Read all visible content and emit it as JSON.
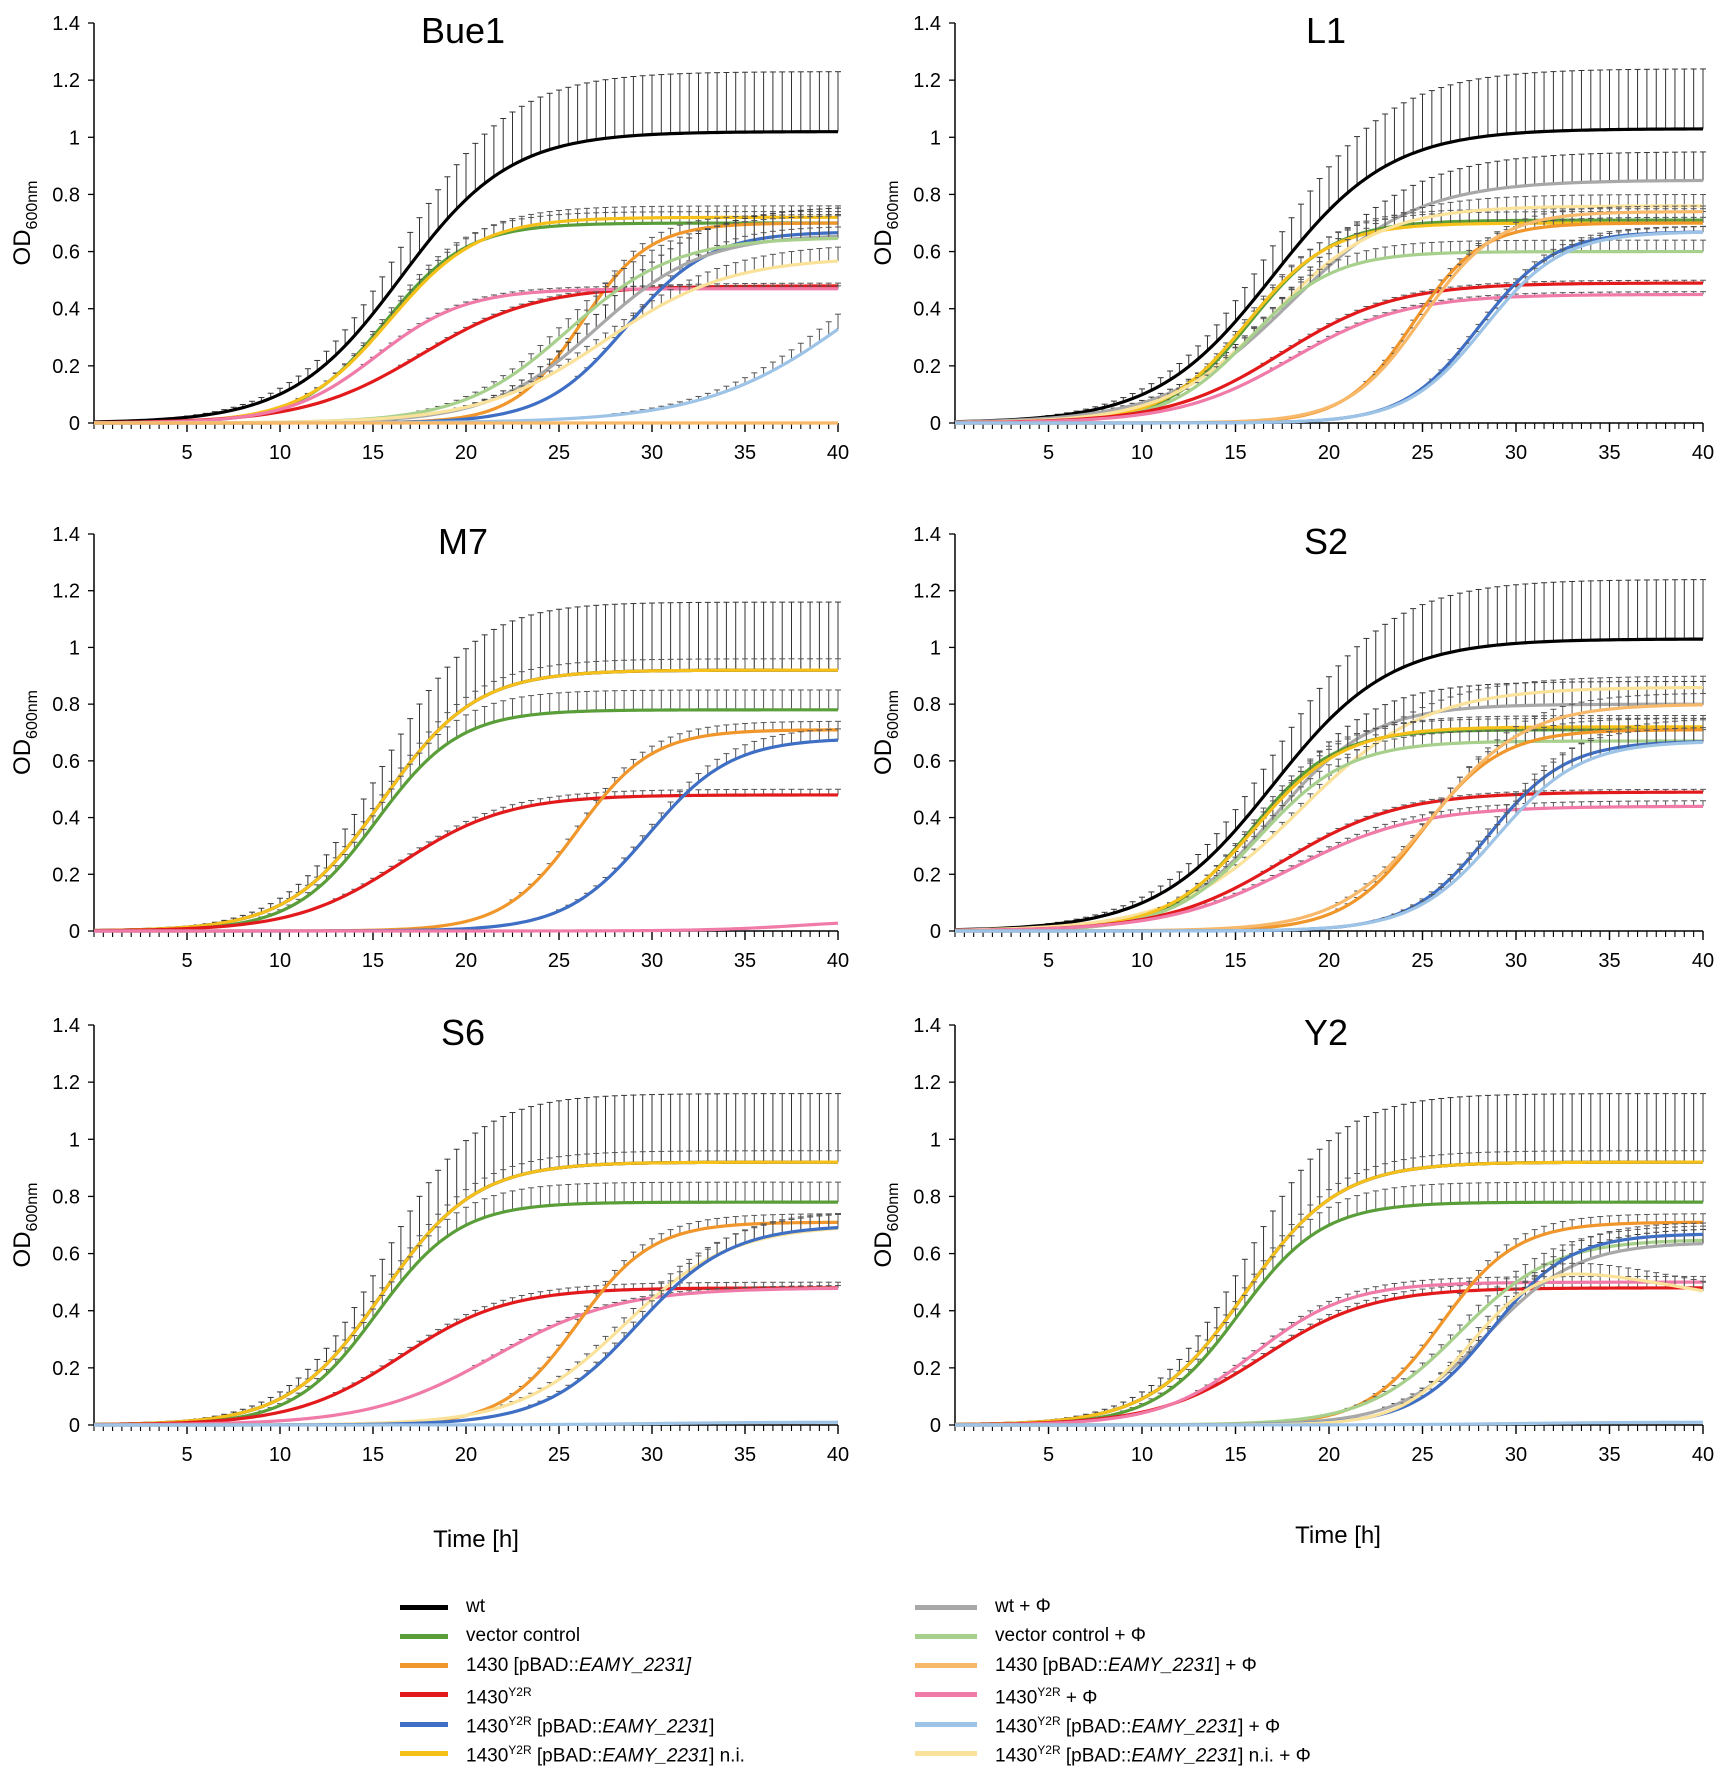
{
  "figure": {
    "y_axis_label_main": "OD",
    "y_axis_label_sub": "600nm",
    "x_axis_label": "Time [h]"
  },
  "series_styles": {
    "wt": "#000000",
    "vc": "#5a9e3a",
    "p1430": "#f0962a",
    "y2r": "#e31a1c",
    "y2rp": "#3f6fc4",
    "y2rni": "#f6c01a",
    "wtP": "#a8a8a8",
    "vcP": "#a8d08d",
    "p1430P": "#f7b86a",
    "y2rP": "#f07aa8",
    "y2rpP": "#9dc3e6",
    "y2rniP": "#fbe29a"
  },
  "legend": {
    "left": [
      {
        "key": "wt",
        "parts": [
          {
            "t": "wt"
          }
        ]
      },
      {
        "key": "vc",
        "parts": [
          {
            "t": "vector control"
          }
        ]
      },
      {
        "key": "p1430",
        "parts": [
          {
            "t": "1430 [pBAD::"
          },
          {
            "t": "EAMY_2231]",
            "i": true
          }
        ]
      },
      {
        "key": "y2r",
        "parts": [
          {
            "t": "1430"
          },
          {
            "t": "Y2R",
            "s": true
          }
        ]
      },
      {
        "key": "y2rp",
        "parts": [
          {
            "t": "1430"
          },
          {
            "t": "Y2R",
            "s": true
          },
          {
            "t": " [pBAD::"
          },
          {
            "t": "EAMY_2231",
            "i": true
          },
          {
            "t": "]"
          }
        ]
      },
      {
        "key": "y2rni",
        "parts": [
          {
            "t": "1430"
          },
          {
            "t": "Y2R",
            "s": true
          },
          {
            "t": " [pBAD::"
          },
          {
            "t": "EAMY_2231",
            "i": true
          },
          {
            "t": "] n.i."
          }
        ]
      }
    ],
    "right": [
      {
        "key": "wtP",
        "parts": [
          {
            "t": "wt + Φ"
          }
        ]
      },
      {
        "key": "vcP",
        "parts": [
          {
            "t": "vector control + Φ"
          }
        ]
      },
      {
        "key": "p1430P",
        "parts": [
          {
            "t": "1430 [pBAD::"
          },
          {
            "t": "EAMY_2231",
            "i": true
          },
          {
            "t": "] + Φ"
          }
        ]
      },
      {
        "key": "y2rP",
        "parts": [
          {
            "t": "1430"
          },
          {
            "t": "Y2R",
            "s": true
          },
          {
            "t": " + Φ"
          }
        ]
      },
      {
        "key": "y2rpP",
        "parts": [
          {
            "t": "1430"
          },
          {
            "t": "Y2R",
            "s": true
          },
          {
            "t": " [pBAD::"
          },
          {
            "t": "EAMY_2231",
            "i": true
          },
          {
            "t": "] + Φ"
          }
        ]
      },
      {
        "key": "y2rniP",
        "parts": [
          {
            "t": "1430"
          },
          {
            "t": "Y2R",
            "s": true
          },
          {
            "t": " [pBAD::"
          },
          {
            "t": "EAMY_2231",
            "i": true
          },
          {
            "t": "] n.i. + Φ"
          }
        ]
      }
    ]
  },
  "chart_data": [
    {
      "type": "line",
      "title": "Bue1",
      "xlabel": "",
      "ylabel": "OD600nm",
      "xlim": [
        0,
        40
      ],
      "ylim": [
        0,
        1.4
      ],
      "xticks": [
        "5",
        "10",
        "15",
        "20",
        "25",
        "30",
        "35",
        "40"
      ],
      "yticks": [
        "0",
        "0.2",
        "0.4",
        "0.6",
        "0.8",
        "1",
        "1.2",
        "1.4"
      ],
      "series": [
        {
          "key": "wt",
          "name": "wt",
          "L": 0.0,
          "K": 1.02,
          "r": 0.34,
          "t0": 16.5,
          "err": 0.21
        },
        {
          "key": "vc",
          "name": "vector control",
          "L": 0.0,
          "K": 0.7,
          "r": 0.45,
          "t0": 15.6,
          "err": 0.04
        },
        {
          "key": "y2rni",
          "name": "1430Y2R [pBAD::EAMY_2231] n.i.",
          "L": 0.0,
          "K": 0.72,
          "r": 0.42,
          "t0": 15.9,
          "err": 0.04
        },
        {
          "key": "p1430",
          "name": "1430 [pBAD::EAMY_2231]",
          "L": 0.0,
          "K": 0.7,
          "r": 0.55,
          "t0": 26.2,
          "err": 0.03
        },
        {
          "key": "y2r",
          "name": "1430Y2R",
          "L": 0.0,
          "K": 0.48,
          "r": 0.32,
          "t0": 17.6,
          "err": 0.01
        },
        {
          "key": "y2rP",
          "name": "1430Y2R + Φ",
          "L": 0.0,
          "K": 0.47,
          "r": 0.42,
          "t0": 15.2,
          "err": 0.01
        },
        {
          "key": "y2rp",
          "name": "1430Y2R [pBAD::EAMY_2231]",
          "L": 0.0,
          "K": 0.67,
          "r": 0.45,
          "t0": 28.6,
          "err": 0.02
        },
        {
          "key": "wtP",
          "name": "wt + Φ",
          "L": 0.0,
          "K": 0.66,
          "r": 0.35,
          "t0": 27.0,
          "err": 0.1
        },
        {
          "key": "vcP",
          "name": "vector control + Φ",
          "L": 0.0,
          "K": 0.65,
          "r": 0.35,
          "t0": 25.5,
          "err": 0.08
        },
        {
          "key": "y2rniP",
          "name": "1430Y2R [pBAD::EAMY_2231] n.i. + Φ",
          "L": 0.0,
          "K": 0.58,
          "r": 0.3,
          "t0": 27.5,
          "err": 0.05
        },
        {
          "key": "y2rpP",
          "name": "1430Y2R [pBAD::EAMY_2231] + Φ",
          "L": 0.0,
          "K": 0.75,
          "r": 0.25,
          "t0": 41.0,
          "err": 0.12
        },
        {
          "key": "p1430P",
          "name": "1430 [pBAD::EAMY_2231] + Φ",
          "L": 0.0,
          "K": 0.0,
          "r": 0.3,
          "t0": 20,
          "err": 0.0
        }
      ]
    },
    {
      "type": "line",
      "title": "L1",
      "xlabel": "",
      "ylabel": "OD600nm",
      "xlim": [
        0,
        40
      ],
      "ylim": [
        0,
        1.4
      ],
      "xticks": [
        "5",
        "10",
        "15",
        "20",
        "25",
        "30",
        "35",
        "40"
      ],
      "yticks": [
        "0",
        "0.2",
        "0.4",
        "0.6",
        "0.8",
        "1",
        "1.2",
        "1.4"
      ],
      "series": [
        {
          "key": "wt",
          "name": "wt",
          "L": 0.0,
          "K": 1.03,
          "r": 0.32,
          "t0": 17.0,
          "err": 0.21
        },
        {
          "key": "wtP",
          "name": "wt + Φ",
          "L": 0.0,
          "K": 0.85,
          "r": 0.3,
          "t0": 18.0,
          "err": 0.1
        },
        {
          "key": "vc",
          "name": "vector control",
          "L": 0.0,
          "K": 0.71,
          "r": 0.45,
          "t0": 15.8,
          "err": 0.04
        },
        {
          "key": "y2rni",
          "name": "1430Y2R [pBAD::EAMY_2231] n.i.",
          "L": 0.0,
          "K": 0.7,
          "r": 0.45,
          "t0": 15.6,
          "err": 0.04
        },
        {
          "key": "y2rniP",
          "name": "1430Y2R [pBAD::EAMY_2231] n.i. + Φ",
          "L": 0.0,
          "K": 0.76,
          "r": 0.35,
          "t0": 17.0,
          "err": 0.04
        },
        {
          "key": "vcP",
          "name": "vector control + Φ",
          "L": 0.0,
          "K": 0.6,
          "r": 0.45,
          "t0": 15.8,
          "err": 0.04
        },
        {
          "key": "y2r",
          "name": "1430Y2R",
          "L": 0.0,
          "K": 0.49,
          "r": 0.33,
          "t0": 17.5,
          "err": 0.01
        },
        {
          "key": "y2rP",
          "name": "1430Y2R + Φ",
          "L": 0.0,
          "K": 0.45,
          "r": 0.33,
          "t0": 18.0,
          "err": 0.01
        },
        {
          "key": "p1430",
          "name": "1430 [pBAD::EAMY_2231]",
          "L": 0.0,
          "K": 0.7,
          "r": 0.55,
          "t0": 24.5,
          "err": 0.02
        },
        {
          "key": "p1430P",
          "name": "1430 [pBAD::EAMY_2231] + Φ",
          "L": 0.0,
          "K": 0.74,
          "r": 0.5,
          "t0": 25.0,
          "err": 0.02
        },
        {
          "key": "y2rp",
          "name": "1430Y2R [pBAD::EAMY_2231]",
          "L": 0.0,
          "K": 0.67,
          "r": 0.5,
          "t0": 28.0,
          "err": 0.02
        },
        {
          "key": "y2rpP",
          "name": "1430Y2R [pBAD::EAMY_2231] + Φ",
          "L": 0.0,
          "K": 0.67,
          "r": 0.48,
          "t0": 28.3,
          "err": 0.02
        }
      ]
    },
    {
      "type": "line",
      "title": "M7",
      "xlabel": "",
      "ylabel": "OD600nm",
      "xlim": [
        0,
        40
      ],
      "ylim": [
        0,
        1.4
      ],
      "xticks": [
        "5",
        "10",
        "15",
        "20",
        "25",
        "30",
        "35",
        "40"
      ],
      "yticks": [
        "0",
        "0.2",
        "0.4",
        "0.6",
        "0.8",
        "1",
        "1.2",
        "1.4"
      ],
      "series": [
        {
          "key": "wt",
          "name": "wt",
          "L": 0.0,
          "K": 0.92,
          "r": 0.4,
          "t0": 15.5,
          "err": 0.24
        },
        {
          "key": "y2rni",
          "name": "1430Y2R [pBAD::EAMY_2231] n.i.",
          "L": 0.0,
          "K": 0.92,
          "r": 0.4,
          "t0": 15.5,
          "err": 0.04
        },
        {
          "key": "vc",
          "name": "vector control",
          "L": 0.0,
          "K": 0.78,
          "r": 0.45,
          "t0": 15.2,
          "err": 0.07
        },
        {
          "key": "y2r",
          "name": "1430Y2R",
          "L": 0.0,
          "K": 0.48,
          "r": 0.35,
          "t0": 16.5,
          "err": 0.02
        },
        {
          "key": "p1430",
          "name": "1430 [pBAD::EAMY_2231]",
          "L": 0.0,
          "K": 0.71,
          "r": 0.5,
          "t0": 26.0,
          "err": 0.03
        },
        {
          "key": "y2rp",
          "name": "1430Y2R [pBAD::EAMY_2231]",
          "L": 0.0,
          "K": 0.68,
          "r": 0.45,
          "t0": 29.8,
          "err": 0.04
        },
        {
          "key": "y2rP",
          "name": "1430Y2R + Φ",
          "L": 0.0,
          "K": 0.04,
          "r": 0.4,
          "t0": 38.0,
          "err": 0.0
        }
      ]
    },
    {
      "type": "line",
      "title": "S2",
      "xlabel": "",
      "ylabel": "OD600nm",
      "xlim": [
        0,
        40
      ],
      "ylim": [
        0,
        1.4
      ],
      "xticks": [
        "5",
        "10",
        "15",
        "20",
        "25",
        "30",
        "35",
        "40"
      ],
      "yticks": [
        "0",
        "0.2",
        "0.4",
        "0.6",
        "0.8",
        "1",
        "1.2",
        "1.4"
      ],
      "series": [
        {
          "key": "wt",
          "name": "wt",
          "L": 0.0,
          "K": 1.03,
          "r": 0.32,
          "t0": 17.0,
          "err": 0.21
        },
        {
          "key": "wtP",
          "name": "wt + Φ",
          "L": 0.0,
          "K": 0.8,
          "r": 0.38,
          "t0": 17.0,
          "err": 0.08
        },
        {
          "key": "y2rniP",
          "name": "1430Y2R [pBAD::EAMY_2231] n.i. + Φ",
          "L": 0.0,
          "K": 0.86,
          "r": 0.3,
          "t0": 18.5,
          "err": 0.04
        },
        {
          "key": "vc",
          "name": "vector control",
          "L": 0.0,
          "K": 0.71,
          "r": 0.45,
          "t0": 15.8,
          "err": 0.04
        },
        {
          "key": "y2rni",
          "name": "1430Y2R [pBAD::EAMY_2231] n.i.",
          "L": 0.0,
          "K": 0.72,
          "r": 0.42,
          "t0": 16.0,
          "err": 0.04
        },
        {
          "key": "vcP",
          "name": "vector control + Φ",
          "L": 0.0,
          "K": 0.67,
          "r": 0.42,
          "t0": 16.3,
          "err": 0.04
        },
        {
          "key": "y2r",
          "name": "1430Y2R",
          "L": 0.0,
          "K": 0.49,
          "r": 0.32,
          "t0": 17.5,
          "err": 0.01
        },
        {
          "key": "y2rP",
          "name": "1430Y2R + Φ",
          "L": 0.0,
          "K": 0.44,
          "r": 0.3,
          "t0": 18.0,
          "err": 0.02
        },
        {
          "key": "p1430",
          "name": "1430 [pBAD::EAMY_2231]",
          "L": 0.0,
          "K": 0.71,
          "r": 0.48,
          "t0": 25.0,
          "err": 0.04
        },
        {
          "key": "p1430P",
          "name": "1430 [pBAD::EAMY_2231] + Φ",
          "L": 0.0,
          "K": 0.8,
          "r": 0.4,
          "t0": 25.5,
          "err": 0.04
        },
        {
          "key": "y2rp",
          "name": "1430Y2R [pBAD::EAMY_2231]",
          "L": 0.0,
          "K": 0.67,
          "r": 0.48,
          "t0": 28.5,
          "err": 0.05
        },
        {
          "key": "y2rpP",
          "name": "1430Y2R [pBAD::EAMY_2231] + Φ",
          "L": 0.0,
          "K": 0.67,
          "r": 0.45,
          "t0": 29.0,
          "err": 0.08
        }
      ]
    },
    {
      "type": "line",
      "title": "S6",
      "xlabel": "",
      "ylabel": "OD600nm",
      "xlim": [
        0,
        40
      ],
      "ylim": [
        0,
        1.4
      ],
      "xticks": [
        "5",
        "10",
        "15",
        "20",
        "25",
        "30",
        "35",
        "40"
      ],
      "yticks": [
        "0",
        "0.2",
        "0.4",
        "0.6",
        "0.8",
        "1",
        "1.2",
        "1.4"
      ],
      "series": [
        {
          "key": "wt",
          "name": "wt",
          "L": 0.0,
          "K": 0.92,
          "r": 0.4,
          "t0": 15.5,
          "err": 0.24
        },
        {
          "key": "y2rni",
          "name": "1430Y2R [pBAD::EAMY_2231] n.i.",
          "L": 0.0,
          "K": 0.92,
          "r": 0.4,
          "t0": 15.5,
          "err": 0.04
        },
        {
          "key": "vc",
          "name": "vector control",
          "L": 0.0,
          "K": 0.78,
          "r": 0.45,
          "t0": 15.2,
          "err": 0.07
        },
        {
          "key": "y2r",
          "name": "1430Y2R",
          "L": 0.0,
          "K": 0.48,
          "r": 0.35,
          "t0": 16.5,
          "err": 0.02
        },
        {
          "key": "y2rP",
          "name": "1430Y2R + Φ",
          "L": 0.0,
          "K": 0.48,
          "r": 0.3,
          "t0": 21.5,
          "err": 0.01
        },
        {
          "key": "p1430",
          "name": "1430 [pBAD::EAMY_2231]",
          "L": 0.0,
          "K": 0.71,
          "r": 0.5,
          "t0": 26.0,
          "err": 0.03
        },
        {
          "key": "y2rniP",
          "name": "1430Y2R [pBAD::EAMY_2231] n.i. + Φ",
          "L": 0.0,
          "K": 0.7,
          "r": 0.35,
          "t0": 28.5,
          "err": 0.05
        },
        {
          "key": "y2rp",
          "name": "1430Y2R [pBAD::EAMY_2231]",
          "L": 0.0,
          "K": 0.7,
          "r": 0.4,
          "t0": 29.2,
          "err": 0.05
        },
        {
          "key": "y2rpP",
          "name": "1430Y2R [pBAD::EAMY_2231] + Φ",
          "L": 0.0,
          "K": 0.01,
          "r": 0.3,
          "t0": 30.0,
          "err": 0.0
        }
      ]
    },
    {
      "type": "line",
      "title": "Y2",
      "xlabel": "",
      "ylabel": "OD600nm",
      "xlim": [
        0,
        40
      ],
      "ylim": [
        0,
        1.4
      ],
      "xticks": [
        "5",
        "10",
        "15",
        "20",
        "25",
        "30",
        "35",
        "40"
      ],
      "yticks": [
        "0",
        "0.2",
        "0.4",
        "0.6",
        "0.8",
        "1",
        "1.2",
        "1.4"
      ],
      "series": [
        {
          "key": "wt",
          "name": "wt",
          "L": 0.0,
          "K": 0.92,
          "r": 0.4,
          "t0": 15.5,
          "err": 0.24
        },
        {
          "key": "y2rni",
          "name": "1430Y2R [pBAD::EAMY_2231] n.i.",
          "L": 0.0,
          "K": 0.92,
          "r": 0.4,
          "t0": 15.5,
          "err": 0.04
        },
        {
          "key": "vc",
          "name": "vector control",
          "L": 0.0,
          "K": 0.78,
          "r": 0.45,
          "t0": 15.2,
          "err": 0.07
        },
        {
          "key": "y2r",
          "name": "1430Y2R",
          "L": 0.0,
          "K": 0.48,
          "r": 0.35,
          "t0": 16.5,
          "err": 0.02
        },
        {
          "key": "y2rP",
          "name": "1430Y2R + Φ",
          "L": 0.0,
          "K": 0.5,
          "r": 0.4,
          "t0": 16.0,
          "err": 0.02
        },
        {
          "key": "p1430",
          "name": "1430 [pBAD::EAMY_2231]",
          "L": 0.0,
          "K": 0.71,
          "r": 0.5,
          "t0": 26.0,
          "err": 0.03
        },
        {
          "key": "vcP",
          "name": "vector control + Φ",
          "L": 0.0,
          "K": 0.65,
          "r": 0.4,
          "t0": 27.0,
          "err": 0.05
        },
        {
          "key": "wtP",
          "name": "wt + Φ",
          "L": 0.0,
          "K": 0.64,
          "r": 0.42,
          "t0": 28.5,
          "err": 0.05
        },
        {
          "key": "y2rp",
          "name": "1430Y2R [pBAD::EAMY_2231]",
          "L": 0.0,
          "K": 0.67,
          "r": 0.48,
          "t0": 28.7,
          "err": 0.04
        },
        {
          "key": "y2rniP",
          "name": "1430Y2R [pBAD::EAMY_2231] n.i. + Φ",
          "L": 0.0,
          "K": 0.56,
          "r": 0.55,
          "t0": 27.5,
          "err": 0.04,
          "drop": true
        },
        {
          "key": "y2rpP",
          "name": "1430Y2R [pBAD::EAMY_2231] + Φ",
          "L": 0.0,
          "K": 0.01,
          "r": 0.3,
          "t0": 30.0,
          "err": 0.0
        }
      ]
    }
  ]
}
